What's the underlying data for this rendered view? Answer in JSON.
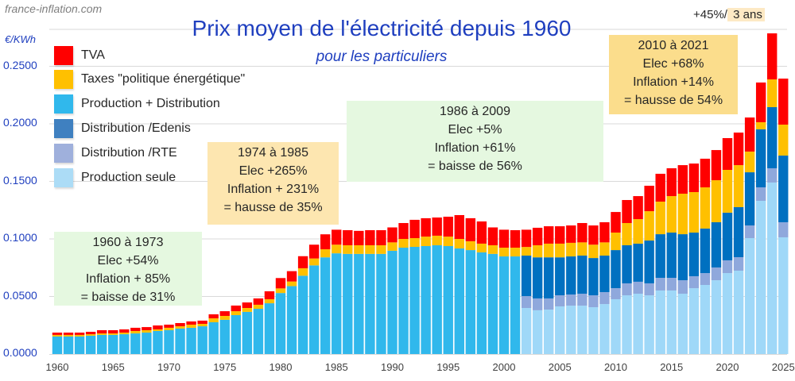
{
  "header": {
    "site": "france-inflation.com",
    "title": "Prix moyen de l'électricité depuis 1960",
    "subtitle": "pour les particuliers",
    "unit": "€/KWh"
  },
  "annotations": {
    "box_1960": [
      "1960 à 1973",
      "Elec  +54%",
      "Inflation + 85%",
      "= baisse de 31%"
    ],
    "box_1974": [
      "1974 à 1985",
      "Elec +265%",
      "Inflation + 231%",
      "= hausse de 35%"
    ],
    "box_1986": [
      "1986 à 2009",
      "Elec +5%",
      "Inflation +61%",
      "= baisse de 56%"
    ],
    "box_2010": [
      "2010 à 2021",
      "Elec +68%",
      "Inflation +14%",
      "= hausse de 54%"
    ],
    "callout_prefix": "+45%/",
    "callout_highlight": " 3 ans"
  },
  "chart_data": {
    "type": "bar",
    "stacked": true,
    "title": "Prix moyen de l'électricité depuis 1960",
    "subtitle": "pour les particuliers",
    "xlabel": "",
    "ylabel": "€/KWh",
    "ylim": [
      0,
      0.28
    ],
    "yticks": [
      "0.0000",
      "0.0500",
      "0.1000",
      "0.1500",
      "0.2000",
      "0.2500"
    ],
    "ytick_values": [
      0,
      0.05,
      0.1,
      0.15,
      0.2,
      0.25
    ],
    "xticks": [
      "1960",
      "1965",
      "1970",
      "1975",
      "1980",
      "1985",
      "1990",
      "1995",
      "2000",
      "2005",
      "2010",
      "2015",
      "2020",
      "2025"
    ],
    "grid": true,
    "legend_position": "top-left",
    "legend": [
      {
        "key": "tva",
        "label": "TVA",
        "color": "#ff0000"
      },
      {
        "key": "taxes",
        "label": "Taxes \"politique énergétique\"",
        "color": "#ffc000"
      },
      {
        "key": "prod_dist",
        "label": "Production + Distribution",
        "color": "#30b8ec"
      },
      {
        "key": "edenis",
        "label": "Distribution /Edenis",
        "color": "#0070c0"
      },
      {
        "key": "rte",
        "label": "Distribution /RTE",
        "color": "#8fa8dc"
      },
      {
        "key": "prod",
        "label": "Production seule",
        "color": "#9fd8f8"
      }
    ],
    "stack_order": [
      "prod",
      "rte",
      "edenis",
      "prod_dist",
      "taxes",
      "tva"
    ],
    "years": [
      1960,
      1961,
      1962,
      1963,
      1964,
      1965,
      1966,
      1967,
      1968,
      1969,
      1970,
      1971,
      1972,
      1973,
      1974,
      1975,
      1976,
      1977,
      1978,
      1979,
      1980,
      1981,
      1982,
      1983,
      1984,
      1985,
      1986,
      1987,
      1988,
      1989,
      1990,
      1991,
      1992,
      1993,
      1994,
      1995,
      1996,
      1997,
      1998,
      1999,
      2000,
      2001,
      2002,
      2003,
      2004,
      2005,
      2006,
      2007,
      2008,
      2009,
      2010,
      2011,
      2012,
      2013,
      2014,
      2015,
      2016,
      2017,
      2018,
      2019,
      2020,
      2021,
      2022,
      2023,
      2024,
      2025
    ],
    "series": [
      {
        "name": "Production seule",
        "key": "prod",
        "values": [
          0,
          0,
          0,
          0,
          0,
          0,
          0,
          0,
          0,
          0,
          0,
          0,
          0,
          0,
          0,
          0,
          0,
          0,
          0,
          0,
          0,
          0,
          0,
          0,
          0,
          0,
          0,
          0,
          0,
          0,
          0,
          0,
          0,
          0,
          0,
          0,
          0,
          0,
          0,
          0,
          0,
          0,
          0.04,
          0.038,
          0.0386,
          0.0414,
          0.042,
          0.042,
          0.0407,
          0.0434,
          0.0476,
          0.051,
          0.0524,
          0.051,
          0.0552,
          0.0552,
          0.0524,
          0.0572,
          0.06,
          0.0641,
          0.0703,
          0.0724,
          0.1007,
          0.1331,
          0.149,
          0.1014
        ]
      },
      {
        "name": "Distribution /RTE",
        "key": "rte",
        "values": [
          0,
          0,
          0,
          0,
          0,
          0,
          0,
          0,
          0,
          0,
          0,
          0,
          0,
          0,
          0,
          0,
          0,
          0,
          0,
          0,
          0,
          0,
          0,
          0,
          0,
          0,
          0,
          0,
          0,
          0,
          0,
          0,
          0,
          0,
          0,
          0,
          0,
          0,
          0,
          0,
          0,
          0,
          0.0103,
          0.0103,
          0.0097,
          0.0096,
          0.0097,
          0.0104,
          0.0103,
          0.0104,
          0.0096,
          0.0104,
          0.0104,
          0.0104,
          0.011,
          0.011,
          0.0117,
          0.0104,
          0.0103,
          0.0111,
          0.0111,
          0.0117,
          0.011,
          0.0117,
          0.0124,
          0.0131
        ]
      },
      {
        "name": "Distribution /Edenis",
        "key": "edenis",
        "values": [
          0,
          0,
          0,
          0,
          0,
          0,
          0,
          0,
          0,
          0,
          0,
          0,
          0,
          0,
          0,
          0,
          0,
          0,
          0,
          0,
          0,
          0,
          0,
          0,
          0,
          0,
          0,
          0,
          0,
          0,
          0,
          0,
          0,
          0,
          0,
          0,
          0,
          0,
          0,
          0,
          0,
          0,
          0.0352,
          0.0357,
          0.0357,
          0.033,
          0.0331,
          0.0331,
          0.0324,
          0.0317,
          0.0331,
          0.0331,
          0.0331,
          0.0372,
          0.0379,
          0.0393,
          0.04,
          0.0379,
          0.0387,
          0.0393,
          0.0414,
          0.0435,
          0.0462,
          0.0504,
          0.0531,
          0.0579
        ]
      },
      {
        "name": "Production + Distribution",
        "key": "prod_dist",
        "values": [
          0.0152,
          0.0152,
          0.0152,
          0.0159,
          0.0166,
          0.0166,
          0.0172,
          0.0179,
          0.0186,
          0.02,
          0.0207,
          0.0221,
          0.0228,
          0.0241,
          0.0276,
          0.0297,
          0.0338,
          0.0366,
          0.0393,
          0.0441,
          0.053,
          0.059,
          0.068,
          0.077,
          0.084,
          0.0875,
          0.087,
          0.087,
          0.087,
          0.087,
          0.0897,
          0.0924,
          0.0931,
          0.0938,
          0.0945,
          0.0938,
          0.0917,
          0.0903,
          0.0883,
          0.087,
          0.0848,
          0.0848,
          0,
          0,
          0,
          0,
          0,
          0,
          0,
          0,
          0,
          0,
          0,
          0,
          0,
          0,
          0,
          0,
          0,
          0,
          0,
          0,
          0,
          0,
          0,
          0
        ]
      },
      {
        "name": "Taxes \"politique énergétique\"",
        "key": "taxes",
        "values": [
          0.0014,
          0.0014,
          0.0014,
          0.0013,
          0.0013,
          0.0013,
          0.0014,
          0.0021,
          0.0021,
          0.0014,
          0.0021,
          0.002,
          0.0027,
          0.0021,
          0.0034,
          0.0034,
          0.0034,
          0.0034,
          0.0035,
          0.0035,
          0.004,
          0.004,
          0.0065,
          0.006,
          0.007,
          0.0075,
          0.0075,
          0.0075,
          0.0075,
          0.0075,
          0.0073,
          0.0076,
          0.0076,
          0.0082,
          0.0083,
          0.0082,
          0.0083,
          0.0077,
          0.0076,
          0.0075,
          0.0076,
          0.0076,
          0.0075,
          0.0105,
          0.0119,
          0.0119,
          0.0118,
          0.0115,
          0.0116,
          0.0115,
          0.0152,
          0.0193,
          0.0213,
          0.0255,
          0.0283,
          0.0317,
          0.0352,
          0.0352,
          0.0358,
          0.0365,
          0.0372,
          0.0365,
          0.018,
          0.0062,
          0.0241,
          0.0269
        ]
      },
      {
        "name": "TVA",
        "key": "tva",
        "values": [
          0.002,
          0.002,
          0.002,
          0.0021,
          0.0028,
          0.0028,
          0.0028,
          0.0028,
          0.0027,
          0.0034,
          0.0027,
          0.0028,
          0.0028,
          0.0028,
          0.0035,
          0.0041,
          0.0049,
          0.0048,
          0.0055,
          0.0069,
          0.009,
          0.009,
          0.0105,
          0.012,
          0.013,
          0.013,
          0.0131,
          0.0125,
          0.0131,
          0.0131,
          0.013,
          0.0138,
          0.0159,
          0.016,
          0.0158,
          0.0173,
          0.0207,
          0.02,
          0.0193,
          0.0155,
          0.0156,
          0.0152,
          0.015,
          0.0152,
          0.0151,
          0.0151,
          0.0151,
          0.0168,
          0.0167,
          0.0175,
          0.0179,
          0.02,
          0.02,
          0.0221,
          0.0242,
          0.0242,
          0.0248,
          0.0248,
          0.0249,
          0.0262,
          0.0276,
          0.0283,
          0.0296,
          0.0345,
          0.04,
          0.04
        ]
      }
    ]
  }
}
